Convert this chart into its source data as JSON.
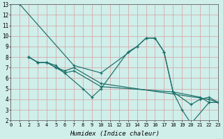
{
  "xlabel": "Humidex (Indice chaleur)",
  "bg_color": "#d0eeea",
  "line_color": "#1a6e68",
  "xlim": [
    0,
    23
  ],
  "ylim": [
    2,
    13
  ],
  "xticks": [
    0,
    1,
    2,
    3,
    4,
    5,
    6,
    7,
    8,
    9,
    10,
    11,
    12,
    13,
    14,
    15,
    16,
    17,
    18,
    19,
    20,
    21,
    22,
    23
  ],
  "yticks": [
    2,
    3,
    4,
    5,
    6,
    7,
    8,
    9,
    10,
    11,
    12,
    13
  ],
  "lines": [
    {
      "x": [
        0,
        1,
        7,
        10,
        14,
        15,
        16,
        17,
        18,
        19,
        20,
        22,
        23
      ],
      "y": [
        13,
        13,
        7.2,
        6.5,
        9.0,
        9.8,
        9.8,
        8.5,
        4.7,
        3.0,
        1.7,
        3.7,
        3.7
      ]
    },
    {
      "x": [
        2,
        3,
        4,
        5,
        8,
        9,
        10,
        13,
        14,
        15,
        16,
        17,
        18,
        21,
        22,
        23
      ],
      "y": [
        8.0,
        7.5,
        7.5,
        7.2,
        5.0,
        4.2,
        5.0,
        8.5,
        9.0,
        9.8,
        9.8,
        8.5,
        4.7,
        4.2,
        3.7,
        3.7
      ]
    },
    {
      "x": [
        2,
        3,
        4,
        5,
        6,
        7,
        10,
        22,
        23
      ],
      "y": [
        8.0,
        7.5,
        7.5,
        7.0,
        6.7,
        7.0,
        5.5,
        4.0,
        3.7
      ]
    },
    {
      "x": [
        2,
        3,
        4,
        5,
        6,
        7,
        10,
        18,
        20,
        21,
        22,
        23
      ],
      "y": [
        8.0,
        7.5,
        7.5,
        7.0,
        6.5,
        6.7,
        5.2,
        4.7,
        3.5,
        4.0,
        4.2,
        3.7
      ]
    }
  ]
}
